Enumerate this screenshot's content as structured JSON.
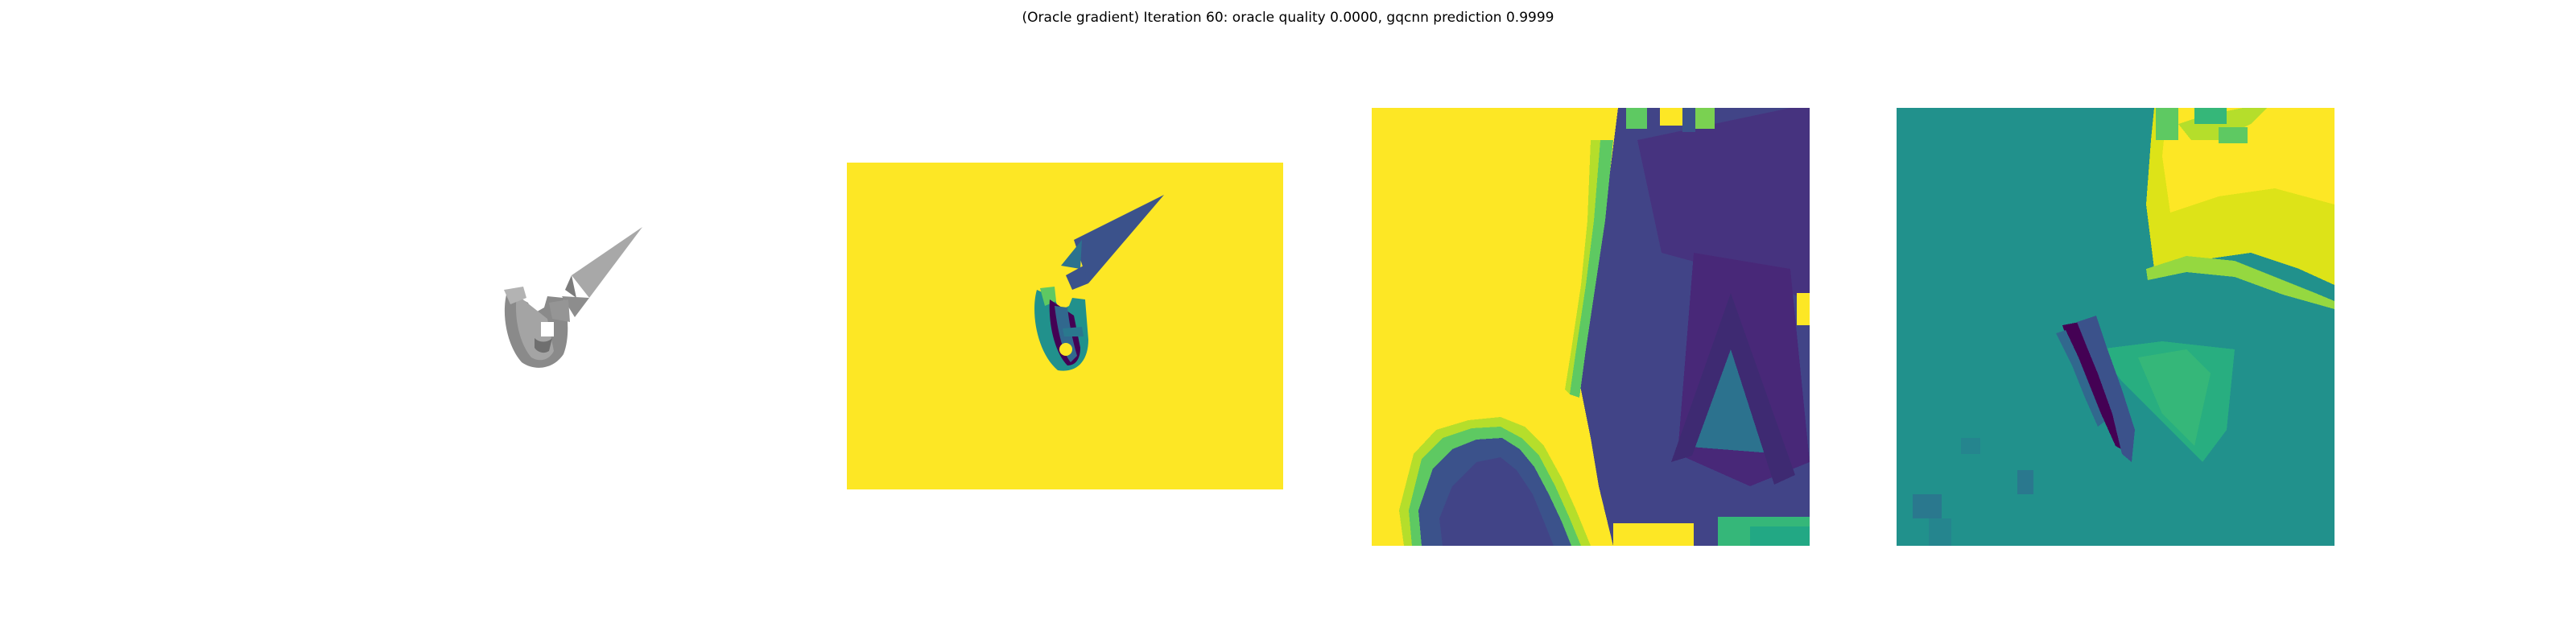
{
  "figure": {
    "title": "(Oracle gradient) Iteration 60: oracle quality 0.0000, gqcnn prediction 0.9999"
  },
  "colors": {
    "viridis_yellow": "#fde725",
    "viridis_green": "#5ec962",
    "viridis_teal": "#21918c",
    "viridis_blue": "#3b528b",
    "viridis_purple": "#440154",
    "mesh_gray": "#9a9a9a"
  },
  "panels": [
    {
      "name": "rendered-object",
      "colormap": "gray"
    },
    {
      "name": "depth-image",
      "colormap": "viridis"
    },
    {
      "name": "depth-crop",
      "colormap": "viridis"
    },
    {
      "name": "gradient-crop",
      "colormap": "viridis"
    }
  ]
}
